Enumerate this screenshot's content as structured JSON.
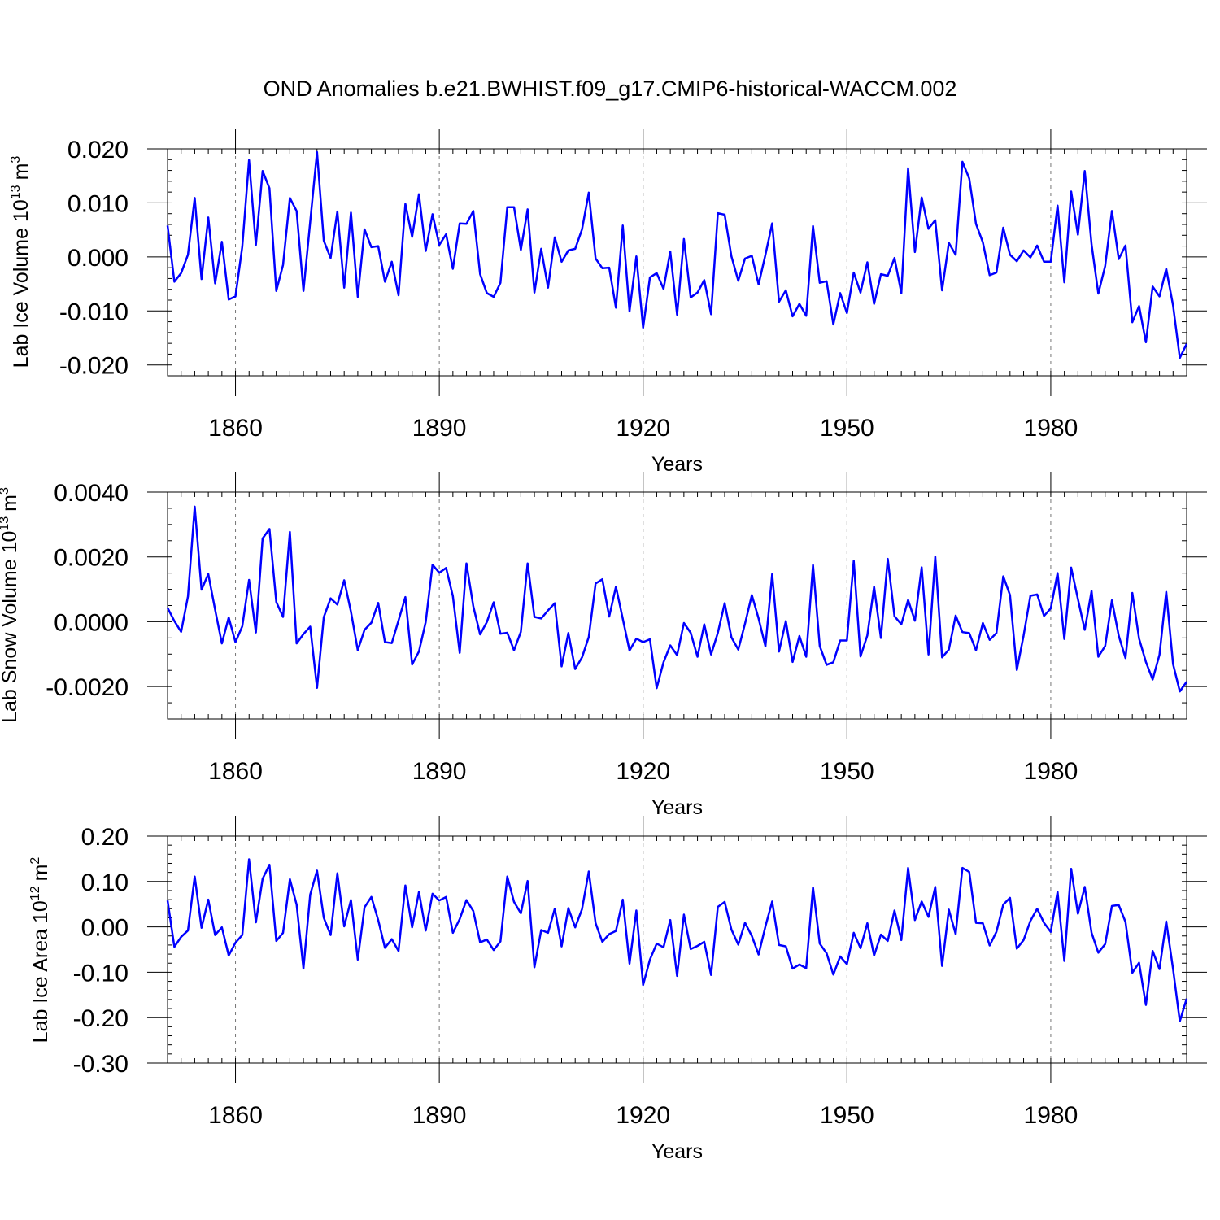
{
  "title": "OND Anomalies b.e21.BWHIST.f09_g17.CMIP6-historical-WACCM.002",
  "colors": {
    "series": "#0000ff",
    "frame": "#000000",
    "grid": "#777777"
  },
  "chart_data": [
    {
      "type": "line",
      "title": "",
      "ylabel": "Lab Ice Volume 10",
      "ylabel_exp": "13",
      "ylabel_unit": "m",
      "ylabel_unit_exp": "3",
      "xlabel": "Years",
      "xlim": [
        1850,
        2000
      ],
      "ylim": [
        -0.022,
        0.02
      ],
      "xticks": [
        1860,
        1890,
        1920,
        1950,
        1980
      ],
      "xtick_labels": [
        "1860",
        "1890",
        "1920",
        "1950",
        "1980"
      ],
      "yticks": [
        0.02,
        0.01,
        0.0,
        -0.01,
        -0.02
      ],
      "ytick_labels": [
        "0.020",
        "0.010",
        "0.000",
        "-0.010",
        "-0.020"
      ],
      "minor_y_step": 0.002,
      "grid": "vertical dashed at major x ticks",
      "start_year": 1850,
      "values": [
        0.0058,
        -0.0046,
        -0.003,
        0.0004,
        0.0109,
        -0.0041,
        0.0073,
        -0.0049,
        0.0028,
        -0.0079,
        -0.0073,
        0.0019,
        0.0179,
        0.0022,
        0.0159,
        0.0127,
        -0.0063,
        -0.0015,
        0.0109,
        0.0085,
        -0.0063,
        0.0065,
        0.0194,
        0.003,
        -0.0002,
        0.0084,
        -0.0057,
        0.0082,
        -0.0074,
        0.0051,
        0.0018,
        0.002,
        -0.0046,
        -0.0009,
        -0.0071,
        0.0098,
        0.0037,
        0.0116,
        0.0011,
        0.0079,
        0.0022,
        0.0042,
        -0.0022,
        0.0062,
        0.0061,
        0.0085,
        -0.0032,
        -0.0067,
        -0.0074,
        -0.0048,
        0.0092,
        0.0092,
        0.0013,
        0.0088,
        -0.0066,
        0.0015,
        -0.0057,
        0.0036,
        -0.0009,
        0.0012,
        0.0015,
        0.0051,
        0.0119,
        -0.0003,
        -0.0021,
        -0.002,
        -0.0094,
        0.0058,
        -0.0101,
        0.0001,
        -0.0131,
        -0.0038,
        -0.003,
        -0.0059,
        0.001,
        -0.0107,
        0.0033,
        -0.0075,
        -0.0066,
        -0.0043,
        -0.0106,
        0.0081,
        0.0078,
        0.0001,
        -0.0044,
        -0.0003,
        0.0002,
        -0.0051,
        0.0004,
        0.0062,
        -0.0083,
        -0.0062,
        -0.011,
        -0.0087,
        -0.0109,
        0.0057,
        -0.0048,
        -0.0045,
        -0.0125,
        -0.0067,
        -0.0104,
        -0.0029,
        -0.0066,
        -0.001,
        -0.0087,
        -0.0032,
        -0.0035,
        -0.0002,
        -0.0067,
        0.0164,
        0.0009,
        0.011,
        0.0052,
        0.0068,
        -0.0062,
        0.0026,
        0.0004,
        0.0176,
        0.0145,
        0.0061,
        0.0027,
        -0.0034,
        -0.0029,
        0.0054,
        0.0004,
        -0.0008,
        0.0012,
        -0.0001,
        0.0021,
        -0.0009,
        -0.0009,
        0.0095,
        -0.0047,
        0.0121,
        0.0041,
        0.0159,
        0.0023,
        -0.0068,
        -0.0017,
        0.0085,
        -0.0004,
        0.0021,
        -0.0121,
        -0.0091,
        -0.0158,
        -0.0055,
        -0.0073,
        -0.0022,
        -0.009,
        -0.0187,
        -0.0161
      ]
    },
    {
      "type": "line",
      "title": "",
      "ylabel": "Lab Snow Volume 10",
      "ylabel_exp": "13",
      "ylabel_unit": "m",
      "ylabel_unit_exp": "3",
      "xlabel": "Years",
      "xlim": [
        1850,
        2000
      ],
      "ylim": [
        -0.003,
        0.004
      ],
      "xticks": [
        1860,
        1890,
        1920,
        1950,
        1980
      ],
      "xtick_labels": [
        "1860",
        "1890",
        "1920",
        "1950",
        "1980"
      ],
      "yticks": [
        0.004,
        0.002,
        0.0,
        -0.002
      ],
      "ytick_labels": [
        "0.0040",
        "0.0020",
        "0.0000",
        "-0.0020"
      ],
      "minor_y_step": 0.0005,
      "grid": "vertical dashed at major x ticks",
      "start_year": 1850,
      "values": [
        0.00043,
        2e-05,
        -0.00031,
        0.00078,
        0.00355,
        0.00099,
        0.00147,
        0.00037,
        -0.00067,
        0.00013,
        -0.00063,
        -0.00014,
        0.00129,
        -0.00033,
        0.00257,
        0.00286,
        0.00061,
        0.00015,
        0.00277,
        -0.00067,
        -0.00038,
        -0.00015,
        -0.00204,
        0.00014,
        0.00072,
        0.00053,
        0.00128,
        0.00031,
        -0.00088,
        -0.00025,
        -3e-05,
        0.00058,
        -0.00063,
        -0.00066,
        4e-05,
        0.00076,
        -0.00132,
        -0.00092,
        -1e-05,
        0.00176,
        0.00151,
        0.00166,
        0.00079,
        -0.00096,
        0.0018,
        0.00048,
        -0.00039,
        -1e-05,
        0.0006,
        -0.00037,
        -0.00034,
        -0.00088,
        -0.00031,
        0.0018,
        0.00015,
        0.0001,
        0.00035,
        0.00057,
        -0.00138,
        -0.00035,
        -0.00146,
        -0.0011,
        -0.00047,
        0.00118,
        0.00131,
        0.00016,
        0.00108,
        9e-05,
        -0.00089,
        -0.00052,
        -0.00063,
        -0.00054,
        -0.00205,
        -0.00125,
        -0.00073,
        -0.00103,
        -4e-05,
        -0.00034,
        -0.00108,
        -8e-05,
        -0.00101,
        -0.00034,
        0.00057,
        -0.00048,
        -0.00086,
        -6e-05,
        0.00082,
        0.0001,
        -0.00076,
        0.00147,
        -0.00092,
        2e-05,
        -0.00124,
        -0.00044,
        -0.00108,
        0.00175,
        -0.00075,
        -0.00133,
        -0.00125,
        -0.00058,
        -0.00058,
        0.00188,
        -0.00107,
        -0.00042,
        0.00108,
        -0.0005,
        0.00194,
        0.00017,
        -8e-05,
        0.00067,
        3e-05,
        0.00168,
        -0.00101,
        0.00201,
        -0.0011,
        -0.00086,
        0.00019,
        -0.00032,
        -0.00035,
        -0.00088,
        -4e-05,
        -0.00056,
        -0.00035,
        0.0014,
        0.00082,
        -0.00149,
        -0.00043,
        0.0008,
        0.00084,
        0.00018,
        0.00041,
        0.0015,
        -0.00053,
        0.00167,
        0.0007,
        -0.00025,
        0.00095,
        -0.00108,
        -0.00075,
        0.00066,
        -0.00043,
        -0.00112,
        0.00089,
        -0.00052,
        -0.00124,
        -0.00178,
        -0.00102,
        0.00092,
        -0.00131,
        -0.00215,
        -0.00185
      ]
    },
    {
      "type": "line",
      "title": "",
      "ylabel": "Lab Ice Area 10",
      "ylabel_exp": "12",
      "ylabel_unit": "m",
      "ylabel_unit_exp": "2",
      "xlabel": "Years",
      "xlim": [
        1850,
        2000
      ],
      "ylim": [
        -0.3,
        0.2
      ],
      "xticks": [
        1860,
        1890,
        1920,
        1950,
        1980
      ],
      "xtick_labels": [
        "1860",
        "1890",
        "1920",
        "1950",
        "1980"
      ],
      "yticks": [
        0.2,
        0.1,
        0.0,
        -0.1,
        -0.2,
        -0.3
      ],
      "ytick_labels": [
        "0.20",
        "0.10",
        "0.00",
        "-0.10",
        "-0.20",
        "-0.30"
      ],
      "minor_y_step": 0.02,
      "grid": "vertical dashed at major x ticks",
      "start_year": 1850,
      "values": [
        0.058,
        -0.044,
        -0.022,
        -0.008,
        0.111,
        -0.002,
        0.06,
        -0.018,
        -0.001,
        -0.063,
        -0.035,
        -0.018,
        0.149,
        0.01,
        0.106,
        0.137,
        -0.031,
        -0.013,
        0.105,
        0.049,
        -0.092,
        0.071,
        0.124,
        0.02,
        -0.018,
        0.118,
        0.001,
        0.059,
        -0.072,
        0.043,
        0.066,
        0.015,
        -0.046,
        -0.027,
        -0.053,
        0.091,
        -0.001,
        0.077,
        -0.008,
        0.073,
        0.058,
        0.066,
        -0.013,
        0.017,
        0.059,
        0.035,
        -0.034,
        -0.028,
        -0.051,
        -0.032,
        0.111,
        0.055,
        0.03,
        0.101,
        -0.089,
        -0.007,
        -0.013,
        0.04,
        -0.043,
        0.041,
        -0.001,
        0.039,
        0.122,
        0.008,
        -0.033,
        -0.016,
        -0.009,
        0.06,
        -0.081,
        0.036,
        -0.128,
        -0.072,
        -0.037,
        -0.045,
        0.015,
        -0.108,
        0.027,
        -0.049,
        -0.042,
        -0.033,
        -0.106,
        0.044,
        0.055,
        -0.006,
        -0.039,
        0.009,
        -0.02,
        -0.061,
        0.001,
        0.056,
        -0.04,
        -0.043,
        -0.092,
        -0.083,
        -0.091,
        0.087,
        -0.037,
        -0.058,
        -0.105,
        -0.065,
        -0.082,
        -0.013,
        -0.047,
        0.008,
        -0.063,
        -0.017,
        -0.031,
        0.036,
        -0.029,
        0.13,
        0.015,
        0.056,
        0.022,
        0.088,
        -0.086,
        0.038,
        -0.016,
        0.13,
        0.121,
        0.009,
        0.008,
        -0.041,
        -0.011,
        0.049,
        0.064,
        -0.048,
        -0.029,
        0.013,
        0.04,
        0.009,
        -0.011,
        0.077,
        -0.075,
        0.128,
        0.029,
        0.088,
        -0.013,
        -0.057,
        -0.038,
        0.046,
        0.048,
        0.011,
        -0.101,
        -0.079,
        -0.172,
        -0.053,
        -0.093,
        0.012,
        -0.093,
        -0.208,
        -0.158
      ]
    }
  ]
}
